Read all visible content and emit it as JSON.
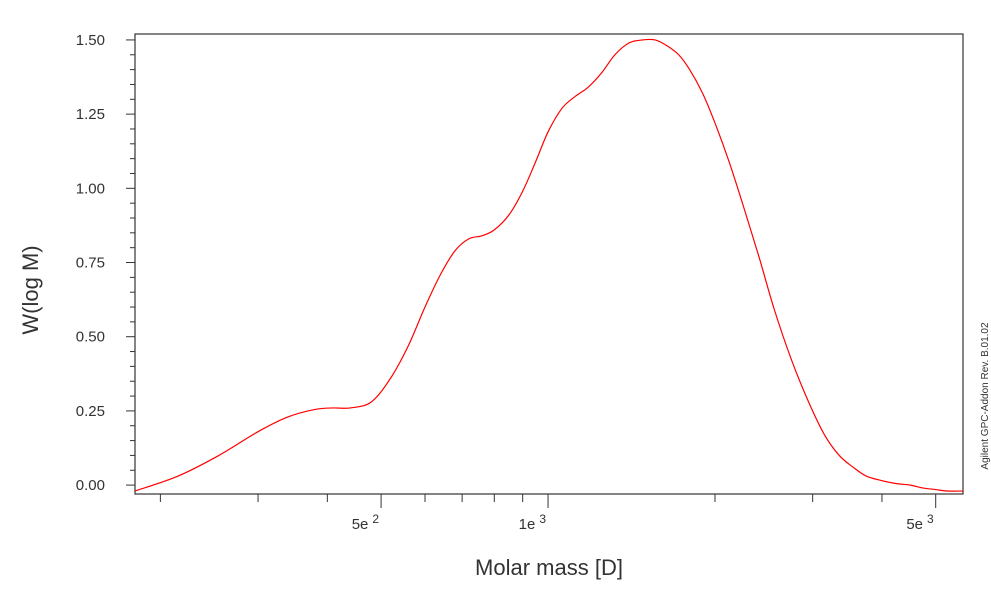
{
  "chart_data": {
    "type": "line",
    "xlabel": "Molar mass [D]",
    "ylabel": "W(log M)",
    "x_scale": "log",
    "xlim": [
      180,
      5600
    ],
    "ylim": [
      -0.03,
      1.52
    ],
    "y_ticks": [
      0.0,
      0.25,
      0.5,
      0.75,
      1.0,
      1.25,
      1.5
    ],
    "y_tick_labels": [
      "0.00",
      "0.25",
      "0.50",
      "0.75",
      "1.00",
      "1.25",
      "1.50"
    ],
    "x_labeled_ticks": [
      {
        "value": 500,
        "mantissa": "5e",
        "exp": "2"
      },
      {
        "value": 1000,
        "mantissa": "1e",
        "exp": "3"
      },
      {
        "value": 5000,
        "mantissa": "5e",
        "exp": "3"
      }
    ],
    "x_minor_ticks": [
      200,
      300,
      400,
      600,
      700,
      800,
      900,
      2000,
      3000,
      4000
    ],
    "grid": false,
    "annotation": "Agilent GPC-Addon Rev. B.01.02",
    "series": [
      {
        "color": "#ff0000",
        "x": [
          180,
          215,
          255,
          300,
          340,
          380,
          410,
          440,
          480,
          520,
          560,
          600,
          640,
          680,
          720,
          760,
          800,
          850,
          900,
          950,
          1000,
          1060,
          1120,
          1180,
          1250,
          1320,
          1400,
          1480,
          1560,
          1640,
          1720,
          1800,
          1900,
          2000,
          2120,
          2250,
          2400,
          2560,
          2750,
          2950,
          3150,
          3350,
          3550,
          3750,
          4000,
          4250,
          4500,
          4750,
          5000,
          5250,
          5600
        ],
        "y": [
          -0.02,
          0.03,
          0.1,
          0.18,
          0.23,
          0.255,
          0.26,
          0.26,
          0.28,
          0.36,
          0.47,
          0.6,
          0.71,
          0.79,
          0.83,
          0.84,
          0.86,
          0.91,
          0.99,
          1.09,
          1.19,
          1.27,
          1.31,
          1.34,
          1.39,
          1.45,
          1.49,
          1.5,
          1.5,
          1.48,
          1.45,
          1.4,
          1.32,
          1.22,
          1.09,
          0.94,
          0.77,
          0.59,
          0.42,
          0.28,
          0.17,
          0.1,
          0.06,
          0.03,
          0.015,
          0.005,
          0.0,
          -0.01,
          -0.015,
          -0.02,
          -0.02
        ]
      }
    ]
  }
}
